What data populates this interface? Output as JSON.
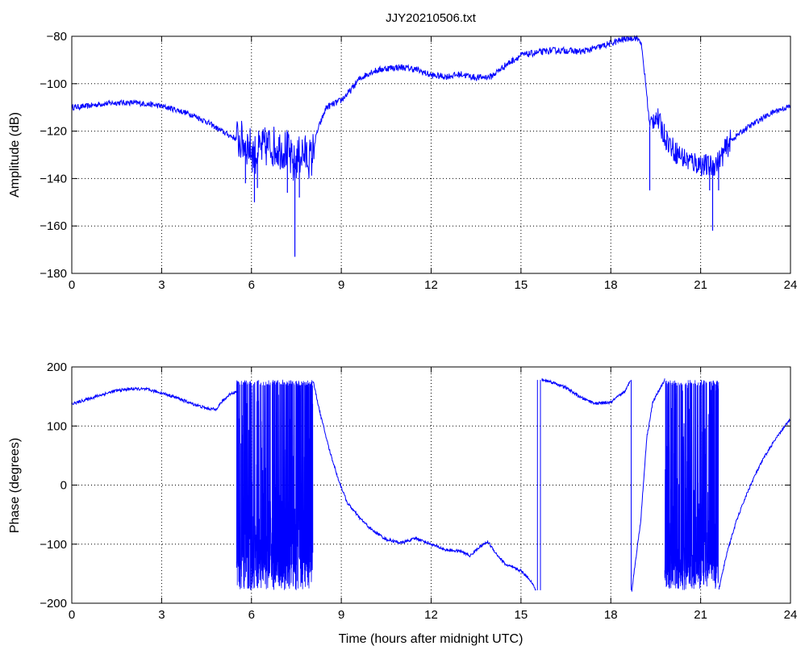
{
  "chart_data": [
    {
      "type": "line",
      "title": "JJY20210506.txt",
      "xlabel": "",
      "ylabel": "Amplitude (dB)",
      "xlim": [
        0,
        24
      ],
      "ylim": [
        -180,
        -80
      ],
      "xticks": [
        0,
        3,
        6,
        9,
        12,
        15,
        18,
        21,
        24
      ],
      "yticks": [
        -80,
        -100,
        -120,
        -140,
        -160,
        -180
      ],
      "xtick_labels": [
        "0",
        "3",
        "6",
        "9",
        "12",
        "15",
        "18",
        "21",
        "24"
      ],
      "ytick_labels": [
        "−80",
        "−100",
        "−120",
        "−140",
        "−160",
        "−180"
      ],
      "grid": true,
      "color": "#0000ff",
      "series": [
        {
          "x": [
            0,
            0.5,
            1,
            1.5,
            2,
            2.5,
            3,
            3.5,
            4,
            4.5,
            5,
            5.3,
            5.6,
            5.9,
            6.1,
            6.3,
            6.6,
            6.9,
            7.2,
            7.4,
            7.5,
            7.7,
            8.0,
            8.2,
            8.5,
            9.0,
            9.3,
            9.6,
            10.0,
            10.5,
            11.0,
            11.5,
            12.0,
            12.5,
            13.0,
            13.5,
            14.0,
            14.5,
            15.0,
            15.5,
            16.0,
            16.5,
            17.0,
            17.5,
            18.0,
            18.5,
            18.8,
            19.0,
            19.15,
            19.3,
            19.5,
            19.8,
            20.1,
            20.5,
            21.0,
            21.3,
            21.6,
            22.0,
            22.5,
            23.0,
            23.5,
            24.0
          ],
          "y": [
            -110,
            -109.5,
            -108.5,
            -108,
            -108,
            -108.5,
            -109.5,
            -111,
            -113,
            -116,
            -120,
            -122,
            -124,
            -126,
            -130,
            -128,
            -126,
            -127,
            -128,
            -135,
            -132,
            -129,
            -132,
            -120,
            -110,
            -107,
            -103,
            -98,
            -95,
            -93.5,
            -93,
            -94,
            -96.5,
            -97,
            -96,
            -97.5,
            -97,
            -92,
            -88,
            -87,
            -86,
            -86,
            -86.5,
            -85,
            -83,
            -81,
            -80.5,
            -82,
            -98,
            -118,
            -113,
            -122,
            -128,
            -132,
            -134,
            -135,
            -133,
            -124,
            -119,
            -115,
            -111.5,
            -109.5
          ],
          "spikes": [
            [
              5.8,
              -142
            ],
            [
              6.1,
              -150
            ],
            [
              6.2,
              -144
            ],
            [
              7.2,
              -146
            ],
            [
              7.45,
              -173
            ],
            [
              7.6,
              -148
            ],
            [
              19.3,
              -145
            ],
            [
              21.3,
              -145
            ],
            [
              21.4,
              -162
            ],
            [
              21.6,
              -145
            ]
          ]
        }
      ]
    },
    {
      "type": "line",
      "title": "",
      "xlabel": "Time (hours after midnight UTC)",
      "ylabel": "Phase (degrees)",
      "xlim": [
        0,
        24
      ],
      "ylim": [
        -200,
        200
      ],
      "xticks": [
        0,
        3,
        6,
        9,
        12,
        15,
        18,
        21,
        24
      ],
      "yticks": [
        200,
        100,
        0,
        -100,
        -200
      ],
      "xtick_labels": [
        "0",
        "3",
        "6",
        "9",
        "12",
        "15",
        "18",
        "21",
        "24"
      ],
      "ytick_labels": [
        "200",
        "100",
        "0",
        "−100",
        "−200"
      ],
      "grid": true,
      "color": "#0000ff",
      "series": [
        {
          "segments": [
            {
              "x": [
                0,
                0.5,
                1,
                1.5,
                2,
                2.5,
                3,
                3.5,
                4,
                4.5,
                4.8,
                5.0,
                5.3,
                5.5
              ],
              "y": [
                137,
                145,
                153,
                160,
                163,
                162,
                156,
                148,
                138,
                130,
                128,
                140,
                155,
                158
              ]
            },
            {
              "x": [
                8.05,
                8.3,
                8.6,
                8.9,
                9.2,
                9.6,
                10.0,
                10.5,
                11.0,
                11.5,
                12.0,
                12.5,
                13.0,
                13.3,
                13.6,
                13.9,
                14.2,
                14.5,
                15.0,
                15.3,
                15.5
              ],
              "y": [
                178,
                120,
                60,
                10,
                -30,
                -55,
                -75,
                -92,
                -98,
                -90,
                -100,
                -110,
                -112,
                -120,
                -105,
                -96,
                -118,
                -135,
                -145,
                -160,
                -178
              ]
            },
            {
              "x": [
                15.7,
                16.0,
                16.5,
                17.0,
                17.5,
                18.0,
                18.5,
                18.65
              ],
              "y": [
                178,
                175,
                165,
                148,
                138,
                140,
                160,
                178
              ]
            },
            {
              "x": [
                18.7,
                19.0,
                19.2,
                19.4,
                19.6,
                19.8
              ],
              "y": [
                -178,
                -60,
                80,
                140,
                160,
                178
              ]
            },
            {
              "x": [
                21.6,
                21.9,
                22.2,
                22.5,
                22.8,
                23.1,
                23.4,
                23.7,
                24.0
              ],
              "y": [
                -178,
                -110,
                -60,
                -20,
                15,
                45,
                70,
                92,
                112
              ]
            }
          ],
          "noisy_regions": [
            [
              5.5,
              8.05
            ],
            [
              19.8,
              21.6
            ]
          ]
        }
      ]
    }
  ]
}
